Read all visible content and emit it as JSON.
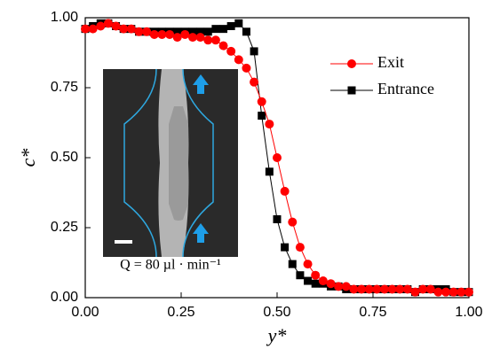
{
  "chart_data": {
    "type": "line",
    "x_label": "y*",
    "y_label": "c*",
    "inset_caption": "Q = 80 µl · min⁻¹",
    "x": [
      0,
      0.02,
      0.04,
      0.06,
      0.08,
      0.1,
      0.12,
      0.14,
      0.16,
      0.18,
      0.2,
      0.22,
      0.24,
      0.26,
      0.28,
      0.3,
      0.32,
      0.34,
      0.36,
      0.38,
      0.4,
      0.42,
      0.44,
      0.46,
      0.48,
      0.5,
      0.52,
      0.54,
      0.56,
      0.58,
      0.6,
      0.62,
      0.64,
      0.66,
      0.68,
      0.7,
      0.72,
      0.74,
      0.76,
      0.78,
      0.8,
      0.82,
      0.84,
      0.86,
      0.88,
      0.9,
      0.92,
      0.94,
      0.96,
      0.98,
      1
    ],
    "series": [
      {
        "name": "Exit",
        "color": "#ff0000",
        "marker": "circle",
        "values": [
          0.96,
          0.96,
          0.97,
          0.98,
          0.97,
          0.96,
          0.96,
          0.95,
          0.95,
          0.94,
          0.94,
          0.94,
          0.93,
          0.94,
          0.93,
          0.93,
          0.92,
          0.92,
          0.9,
          0.88,
          0.85,
          0.82,
          0.77,
          0.7,
          0.62,
          0.5,
          0.38,
          0.27,
          0.18,
          0.12,
          0.08,
          0.06,
          0.05,
          0.04,
          0.04,
          0.03,
          0.03,
          0.03,
          0.03,
          0.03,
          0.03,
          0.03,
          0.03,
          0.02,
          0.03,
          0.03,
          0.02,
          0.02,
          0.02,
          0.02,
          0.02
        ]
      },
      {
        "name": "Entrance",
        "color": "#000000",
        "marker": "square",
        "values": [
          0.96,
          0.97,
          0.98,
          0.98,
          0.97,
          0.96,
          0.96,
          0.95,
          0.95,
          0.95,
          0.95,
          0.95,
          0.95,
          0.95,
          0.95,
          0.95,
          0.95,
          0.96,
          0.96,
          0.97,
          0.98,
          0.95,
          0.88,
          0.65,
          0.45,
          0.28,
          0.18,
          0.12,
          0.08,
          0.06,
          0.05,
          0.05,
          0.04,
          0.04,
          0.03,
          0.03,
          0.03,
          0.03,
          0.03,
          0.03,
          0.03,
          0.03,
          0.03,
          0.02,
          0.03,
          0.03,
          0.03,
          0.03,
          0.02,
          0.02,
          0.02
        ]
      }
    ],
    "xlim": [
      0,
      1
    ],
    "ylim": [
      0,
      1
    ],
    "xticks": [
      {
        "value": 0,
        "label": "0.00"
      },
      {
        "value": 0.25,
        "label": "0.25"
      },
      {
        "value": 0.5,
        "label": "0.50"
      },
      {
        "value": 0.75,
        "label": "0.75"
      },
      {
        "value": 1,
        "label": "1.00"
      }
    ],
    "yticks": [
      {
        "value": 0,
        "label": "0.00"
      },
      {
        "value": 0.25,
        "label": "0.25"
      },
      {
        "value": 0.5,
        "label": "0.50"
      },
      {
        "value": 0.75,
        "label": "0.75"
      },
      {
        "value": 1,
        "label": "1.00"
      }
    ],
    "grid": false
  }
}
